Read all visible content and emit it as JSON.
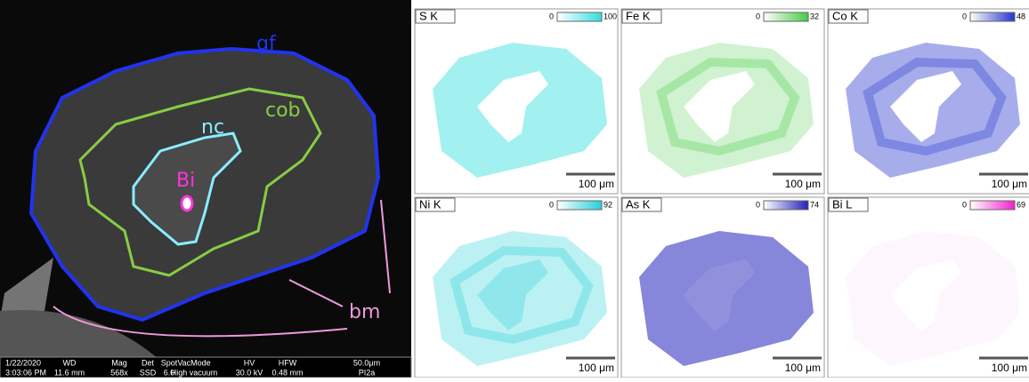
{
  "sem": {
    "labels": {
      "gf": "gf",
      "cob": "cob",
      "nc": "nc",
      "bi": "Bi",
      "bm": "bm"
    },
    "info": {
      "date": "1/22/2020",
      "time": "3:03:06 PM",
      "wd_label": "WD",
      "wd": "11.6 mm",
      "mag_label": "Mag",
      "mag": "568x",
      "det_label": "Det",
      "det": "SSD",
      "spot_label": "Spot",
      "spot": "6.0",
      "vac_label": "VacMode",
      "vac": "High vacuum",
      "hv_label": "HV",
      "hv": "30.0 kV",
      "hfw_label": "HFW",
      "hfw": "0.48 mm",
      "scale": "50.0μm",
      "sample": "PI2a"
    }
  },
  "maps": [
    {
      "element": "S K",
      "min": "0",
      "max": "100",
      "color": "#33dde0",
      "scale": "100 μm"
    },
    {
      "element": "Fe K",
      "min": "0",
      "max": "32",
      "color": "#44cc44",
      "scale": "100 μm"
    },
    {
      "element": "Co K",
      "min": "0",
      "max": "48",
      "color": "#2233cc",
      "scale": "100 μm"
    },
    {
      "element": "Ni K",
      "min": "0",
      "max": "92",
      "color": "#22d0d8",
      "scale": "100 μm"
    },
    {
      "element": "As K",
      "min": "0",
      "max": "74",
      "color": "#2222bb",
      "scale": "100 μm"
    },
    {
      "element": "Bi L",
      "min": "0",
      "max": "69",
      "color": "#ee22cc",
      "scale": "100 μm"
    }
  ]
}
